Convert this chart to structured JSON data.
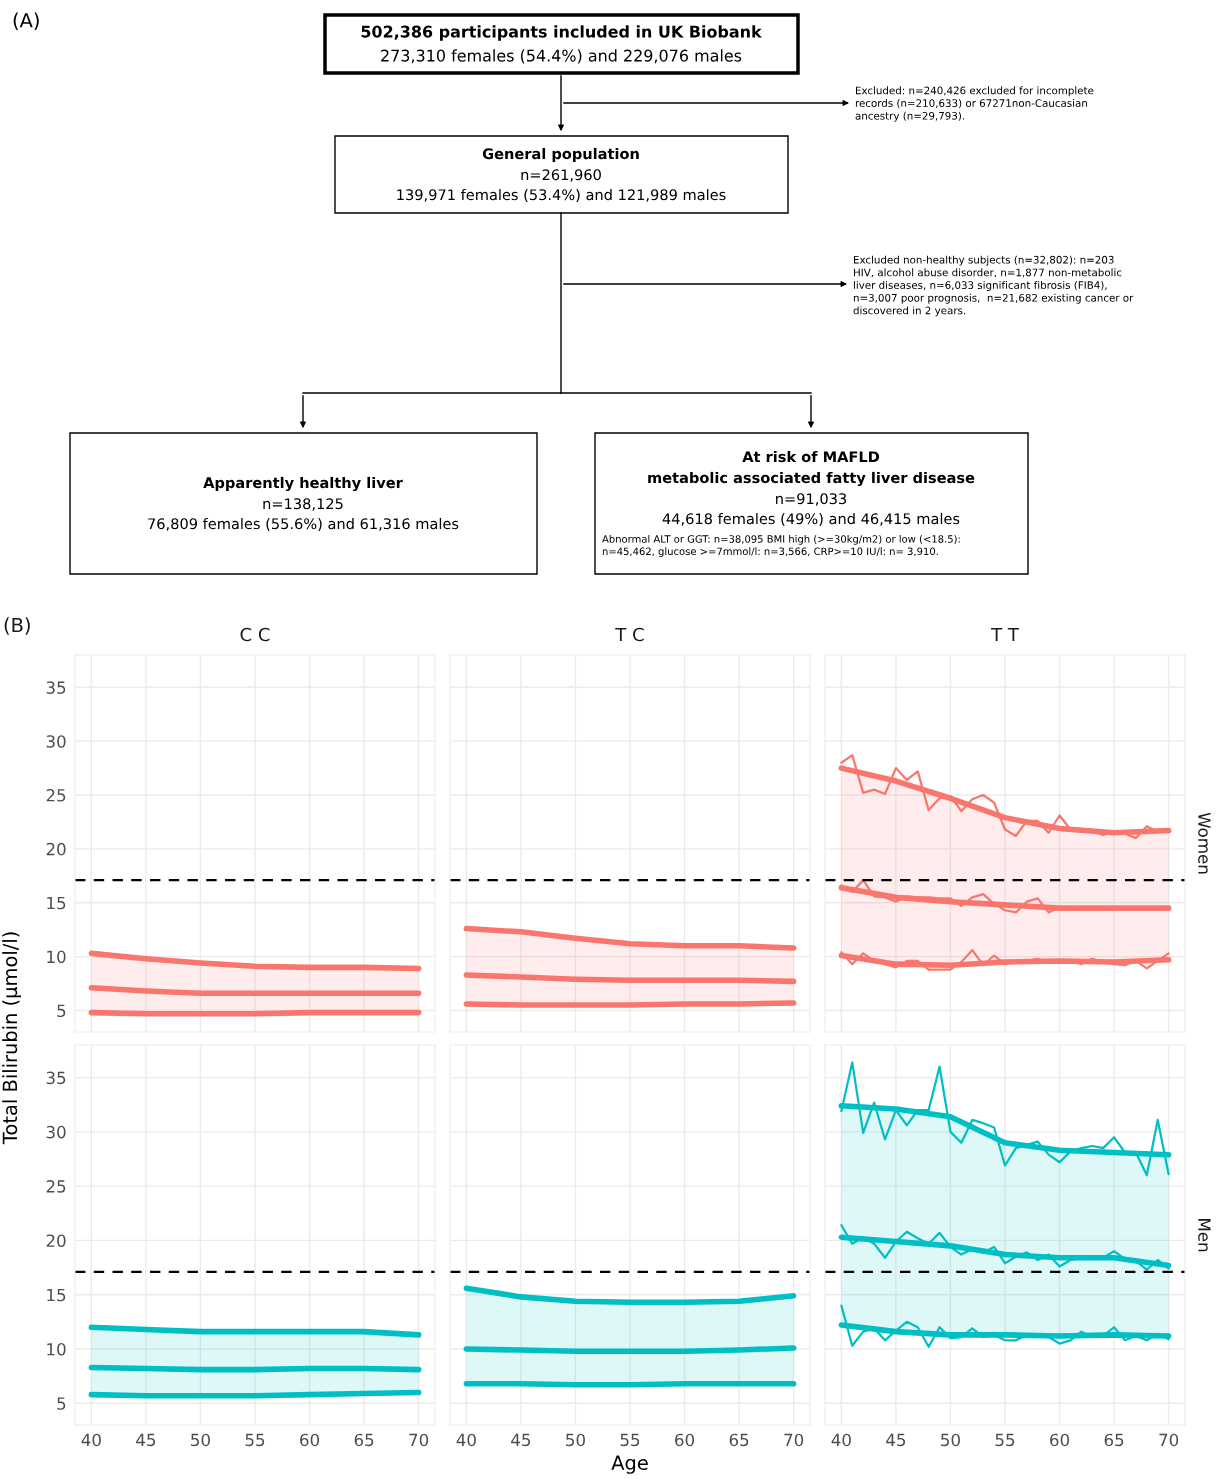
{
  "chart_data": [
    {
      "type": "other",
      "annotations": [
        "(A)",
        "502,386 participants included in UK Biobank",
        "273,310 females (54.4%) and 229,076 males",
        "Excluded: n=240,426 excluded for incomplete\nrecords (n=210,633) or 67271non-Caucasian\nancestry (n=29,793).",
        "General population",
        "n=261,960",
        "139,971 females (53.4%) and 121,989 males",
        "Excluded non-healthy subjects (n=32,802): n=203\nHIV, alcohol abuse disorder, n=1,877 non-metabolic\nliver diseases, n=6,033 significant fibrosis (FIB4),\nn=3,007 poor prognosis,  n=21,682 existing cancer or\ndiscovered in 2 years.",
        "Apparently healthy liver",
        "n=138,125",
        "76,809 females (55.6%) and 61,316 males",
        "At risk of MAFLD",
        "metabolic associated fatty liver disease",
        "n=91,033",
        "44,618 females (49%) and 46,415 males",
        "Abnormal ALT or GGT: n=38,095 BMI high (>=30kg/m2) or low (<18.5):\nn=45,462, glucose >=7mmol/l: n=3,566, CRP>=10 IU/l: n= 3,910."
      ]
    },
    {
      "type": "line",
      "title": "C C",
      "annotations": [
        "(B)"
      ],
      "x": [
        40,
        45,
        50,
        55,
        60,
        65,
        70
      ],
      "xlim": [
        38.5,
        71.5
      ],
      "ylim": [
        3,
        38
      ],
      "xticks": [
        40,
        45,
        50,
        55,
        60,
        65,
        70
      ],
      "yticks": [
        5,
        10,
        15,
        20,
        25,
        30,
        35
      ],
      "grid": true,
      "tick_labels": "y",
      "ref_lines": [
        {
          "axis": "y",
          "value": 17.1,
          "color": "#000000",
          "line_style": "dashed"
        }
      ],
      "series": [
        {
          "color": "#f8766d",
          "values": [
            10.3,
            9.8,
            9.4,
            9.1,
            9.0,
            9.0,
            8.9
          ]
        },
        {
          "color": "#f8766d",
          "values": [
            7.1,
            6.8,
            6.6,
            6.6,
            6.6,
            6.6,
            6.6
          ],
          "lower": [
            4.8,
            4.7,
            4.7,
            4.7,
            4.8,
            4.8,
            4.8
          ],
          "upper": [
            10.3,
            9.8,
            9.4,
            9.1,
            9.0,
            9.0,
            8.9
          ]
        },
        {
          "color": "#f8766d",
          "values": [
            4.8,
            4.7,
            4.7,
            4.7,
            4.8,
            4.8,
            4.8
          ]
        }
      ]
    },
    {
      "type": "line",
      "title": "T C",
      "x": [
        40,
        45,
        50,
        55,
        60,
        65,
        70
      ],
      "xlim": [
        38.5,
        71.5
      ],
      "ylim": [
        3,
        38
      ],
      "xticks": [
        40,
        45,
        50,
        55,
        60,
        65,
        70
      ],
      "yticks": [
        5,
        10,
        15,
        20,
        25,
        30,
        35
      ],
      "grid": true,
      "tick_labels": false,
      "ref_lines": [
        {
          "axis": "y",
          "value": 17.1,
          "color": "#000000",
          "line_style": "dashed"
        }
      ],
      "series": [
        {
          "color": "#f8766d",
          "values": [
            12.6,
            12.3,
            11.7,
            11.2,
            11.0,
            11.0,
            10.8
          ]
        },
        {
          "color": "#f8766d",
          "values": [
            8.3,
            8.1,
            7.9,
            7.8,
            7.8,
            7.8,
            7.7
          ],
          "lower": [
            5.6,
            5.5,
            5.5,
            5.5,
            5.6,
            5.6,
            5.7
          ],
          "upper": [
            12.6,
            12.3,
            11.7,
            11.2,
            11.0,
            11.0,
            10.8
          ]
        },
        {
          "color": "#f8766d",
          "values": [
            5.6,
            5.5,
            5.5,
            5.5,
            5.6,
            5.6,
            5.7
          ]
        }
      ]
    },
    {
      "type": "line",
      "title": "T T",
      "annotations": [
        "Women"
      ],
      "x": [
        40,
        45,
        50,
        55,
        60,
        65,
        70
      ],
      "xlim": [
        38.5,
        71.5
      ],
      "ylim": [
        3,
        38
      ],
      "xticks": [
        40,
        45,
        50,
        55,
        60,
        65,
        70
      ],
      "yticks": [
        5,
        10,
        15,
        20,
        25,
        30,
        35
      ],
      "grid": true,
      "tick_labels": false,
      "ref_lines": [
        {
          "axis": "y",
          "value": 17.1,
          "color": "#000000",
          "line_style": "dashed"
        }
      ],
      "series": [
        {
          "color": "#f8766d",
          "values": [
            27.5,
            26.3,
            24.7,
            22.9,
            21.9,
            21.5,
            21.7
          ]
        },
        {
          "color": "#f8766d",
          "values": [
            16.4,
            15.5,
            15.1,
            14.8,
            14.5,
            14.5,
            14.5
          ],
          "lower": [
            10.1,
            9.3,
            9.2,
            9.5,
            9.6,
            9.5,
            9.7
          ],
          "upper": [
            27.5,
            26.3,
            24.7,
            22.9,
            21.9,
            21.5,
            21.7
          ]
        },
        {
          "color": "#f8766d",
          "values": [
            10.1,
            9.3,
            9.2,
            9.5,
            9.6,
            9.5,
            9.7
          ]
        },
        {
          "color": "#f8766d",
          "x": [
            40,
            41,
            42,
            43,
            44,
            45,
            46,
            47,
            48,
            49,
            50,
            51,
            52,
            53,
            54,
            55,
            56,
            57,
            58,
            59,
            60,
            61,
            62,
            63,
            64,
            65,
            66,
            67,
            68,
            69,
            70
          ],
          "values": [
            28.0,
            28.7,
            25.2,
            25.5,
            25.1,
            27.5,
            26.4,
            27.2,
            23.6,
            24.7,
            24.9,
            23.5,
            24.6,
            25.0,
            24.3,
            21.8,
            21.2,
            22.6,
            22.6,
            21.5,
            23.1,
            21.8,
            21.6,
            21.6,
            21.3,
            21.6,
            21.4,
            21.0,
            22.1,
            21.6,
            21.7
          ]
        },
        {
          "color": "#f8766d",
          "x": [
            40,
            41,
            42,
            43,
            44,
            45,
            46,
            47,
            48,
            49,
            50,
            51,
            52,
            53,
            54,
            55,
            56,
            57,
            58,
            59,
            60,
            61,
            62,
            63,
            64,
            65,
            66,
            67,
            68,
            69,
            70
          ],
          "values": [
            16.6,
            16.0,
            17.1,
            15.6,
            15.5,
            15.1,
            15.6,
            15.5,
            15.5,
            15.4,
            15.4,
            14.7,
            15.5,
            15.8,
            14.9,
            14.3,
            14.1,
            15.1,
            15.4,
            14.1,
            14.6,
            14.5,
            14.5,
            14.6,
            14.5,
            14.5,
            14.5,
            14.5,
            14.5,
            14.5,
            14.4
          ]
        },
        {
          "color": "#f8766d",
          "x": [
            40,
            41,
            42,
            43,
            44,
            45,
            46,
            47,
            48,
            49,
            50,
            51,
            52,
            53,
            54,
            55,
            56,
            57,
            58,
            59,
            60,
            61,
            62,
            63,
            64,
            65,
            66,
            67,
            68,
            69,
            70
          ],
          "values": [
            10.4,
            9.3,
            10.3,
            9.6,
            9.3,
            9.0,
            9.6,
            9.6,
            8.8,
            8.8,
            8.8,
            9.5,
            10.6,
            9.2,
            10.1,
            9.3,
            9.6,
            9.6,
            9.8,
            9.5,
            9.5,
            9.6,
            9.3,
            9.8,
            9.5,
            9.3,
            9.2,
            9.6,
            8.9,
            9.6,
            10.3
          ]
        }
      ]
    },
    {
      "type": "line",
      "ylabel": "Total Bilirubin (µmol/l)",
      "x": [
        40,
        45,
        50,
        55,
        60,
        65,
        70
      ],
      "xlim": [
        38.5,
        71.5
      ],
      "ylim": [
        3,
        38
      ],
      "xticks": [
        40,
        45,
        50,
        55,
        60,
        65,
        70
      ],
      "yticks": [
        5,
        10,
        15,
        20,
        25,
        30,
        35
      ],
      "grid": true,
      "ref_lines": [
        {
          "axis": "y",
          "value": 17.1,
          "color": "#000000",
          "line_style": "dashed"
        }
      ],
      "series": [
        {
          "color": "#00bfc4",
          "values": [
            12.0,
            11.8,
            11.6,
            11.6,
            11.6,
            11.6,
            11.3
          ]
        },
        {
          "color": "#00bfc4",
          "values": [
            8.3,
            8.2,
            8.1,
            8.1,
            8.2,
            8.2,
            8.1
          ],
          "lower": [
            5.8,
            5.7,
            5.7,
            5.7,
            5.8,
            5.9,
            6.0
          ],
          "upper": [
            12.0,
            11.8,
            11.6,
            11.6,
            11.6,
            11.6,
            11.3
          ]
        },
        {
          "color": "#00bfc4",
          "values": [
            5.8,
            5.7,
            5.7,
            5.7,
            5.8,
            5.9,
            6.0
          ]
        }
      ]
    },
    {
      "type": "line",
      "xlabel": "Age",
      "x": [
        40,
        45,
        50,
        55,
        60,
        65,
        70
      ],
      "xlim": [
        38.5,
        71.5
      ],
      "ylim": [
        3,
        38
      ],
      "xticks": [
        40,
        45,
        50,
        55,
        60,
        65,
        70
      ],
      "yticks": [
        5,
        10,
        15,
        20,
        25,
        30,
        35
      ],
      "grid": true,
      "tick_labels": "x",
      "ref_lines": [
        {
          "axis": "y",
          "value": 17.1,
          "color": "#000000",
          "line_style": "dashed"
        }
      ],
      "series": [
        {
          "color": "#00bfc4",
          "values": [
            15.6,
            14.8,
            14.4,
            14.3,
            14.3,
            14.4,
            14.9
          ]
        },
        {
          "color": "#00bfc4",
          "values": [
            10.0,
            9.9,
            9.8,
            9.8,
            9.8,
            9.9,
            10.1
          ],
          "lower": [
            6.8,
            6.8,
            6.7,
            6.7,
            6.8,
            6.8,
            6.8
          ],
          "upper": [
            15.6,
            14.8,
            14.4,
            14.3,
            14.3,
            14.4,
            14.9
          ]
        },
        {
          "color": "#00bfc4",
          "values": [
            6.8,
            6.8,
            6.7,
            6.7,
            6.8,
            6.8,
            6.8
          ]
        }
      ]
    },
    {
      "type": "line",
      "annotations": [
        "Men"
      ],
      "x": [
        40,
        45,
        50,
        55,
        60,
        65,
        70
      ],
      "xlim": [
        38.5,
        71.5
      ],
      "ylim": [
        3,
        38
      ],
      "xticks": [
        40,
        45,
        50,
        55,
        60,
        65,
        70
      ],
      "yticks": [
        5,
        10,
        15,
        20,
        25,
        30,
        35
      ],
      "grid": true,
      "tick_labels": "x",
      "ref_lines": [
        {
          "axis": "y",
          "value": 17.1,
          "color": "#000000",
          "line_style": "dashed"
        }
      ],
      "series": [
        {
          "color": "#00bfc4",
          "values": [
            32.4,
            32.1,
            31.4,
            29.0,
            28.3,
            28.1,
            27.9
          ]
        },
        {
          "color": "#00bfc4",
          "values": [
            20.3,
            19.9,
            19.5,
            18.7,
            18.4,
            18.4,
            17.7
          ],
          "lower": [
            12.2,
            11.6,
            11.3,
            11.3,
            11.2,
            11.3,
            11.2
          ],
          "upper": [
            32.4,
            32.1,
            31.4,
            29.0,
            28.3,
            28.1,
            27.9
          ]
        },
        {
          "color": "#00bfc4",
          "values": [
            12.2,
            11.6,
            11.3,
            11.3,
            11.2,
            11.3,
            11.2
          ]
        },
        {
          "color": "#00bfc4",
          "x": [
            40,
            41,
            42,
            43,
            44,
            45,
            46,
            47,
            48,
            49,
            50,
            51,
            52,
            53,
            54,
            55,
            56,
            57,
            58,
            59,
            60,
            61,
            62,
            63,
            64,
            65,
            66,
            67,
            68,
            69,
            70
          ],
          "values": [
            31.9,
            36.4,
            29.9,
            32.7,
            29.3,
            32.0,
            30.6,
            32.0,
            32.0,
            36.0,
            30.0,
            29.0,
            31.1,
            30.8,
            30.4,
            26.9,
            28.5,
            28.8,
            29.1,
            27.9,
            27.2,
            28.2,
            28.5,
            28.7,
            28.5,
            29.5,
            28.1,
            28.1,
            26.0,
            31.1,
            26.1
          ]
        },
        {
          "color": "#00bfc4",
          "x": [
            40,
            41,
            42,
            43,
            44,
            45,
            46,
            47,
            48,
            49,
            50,
            51,
            52,
            53,
            54,
            55,
            56,
            57,
            58,
            59,
            60,
            61,
            62,
            63,
            64,
            65,
            66,
            67,
            68,
            69,
            70
          ],
          "values": [
            21.4,
            19.7,
            20.3,
            19.7,
            18.4,
            19.9,
            20.8,
            20.2,
            19.7,
            20.7,
            19.4,
            18.7,
            19.2,
            18.9,
            19.4,
            17.9,
            18.5,
            18.9,
            18.2,
            18.7,
            17.6,
            18.2,
            18.4,
            18.5,
            18.4,
            19.0,
            18.3,
            18.1,
            17.3,
            18.2,
            17.4
          ]
        },
        {
          "color": "#00bfc4",
          "x": [
            40,
            41,
            42,
            43,
            44,
            45,
            46,
            47,
            48,
            49,
            50,
            51,
            52,
            53,
            54,
            55,
            56,
            57,
            58,
            59,
            60,
            61,
            62,
            63,
            64,
            65,
            66,
            67,
            68,
            69,
            70
          ],
          "values": [
            14.0,
            10.3,
            11.6,
            11.9,
            10.8,
            11.7,
            12.5,
            12.0,
            10.2,
            12.0,
            11.0,
            11.1,
            11.9,
            11.1,
            11.3,
            10.8,
            10.8,
            11.3,
            11.2,
            11.1,
            10.5,
            10.8,
            11.6,
            11.1,
            11.2,
            12.0,
            10.8,
            11.2,
            10.8,
            11.4,
            10.9
          ]
        }
      ]
    }
  ]
}
